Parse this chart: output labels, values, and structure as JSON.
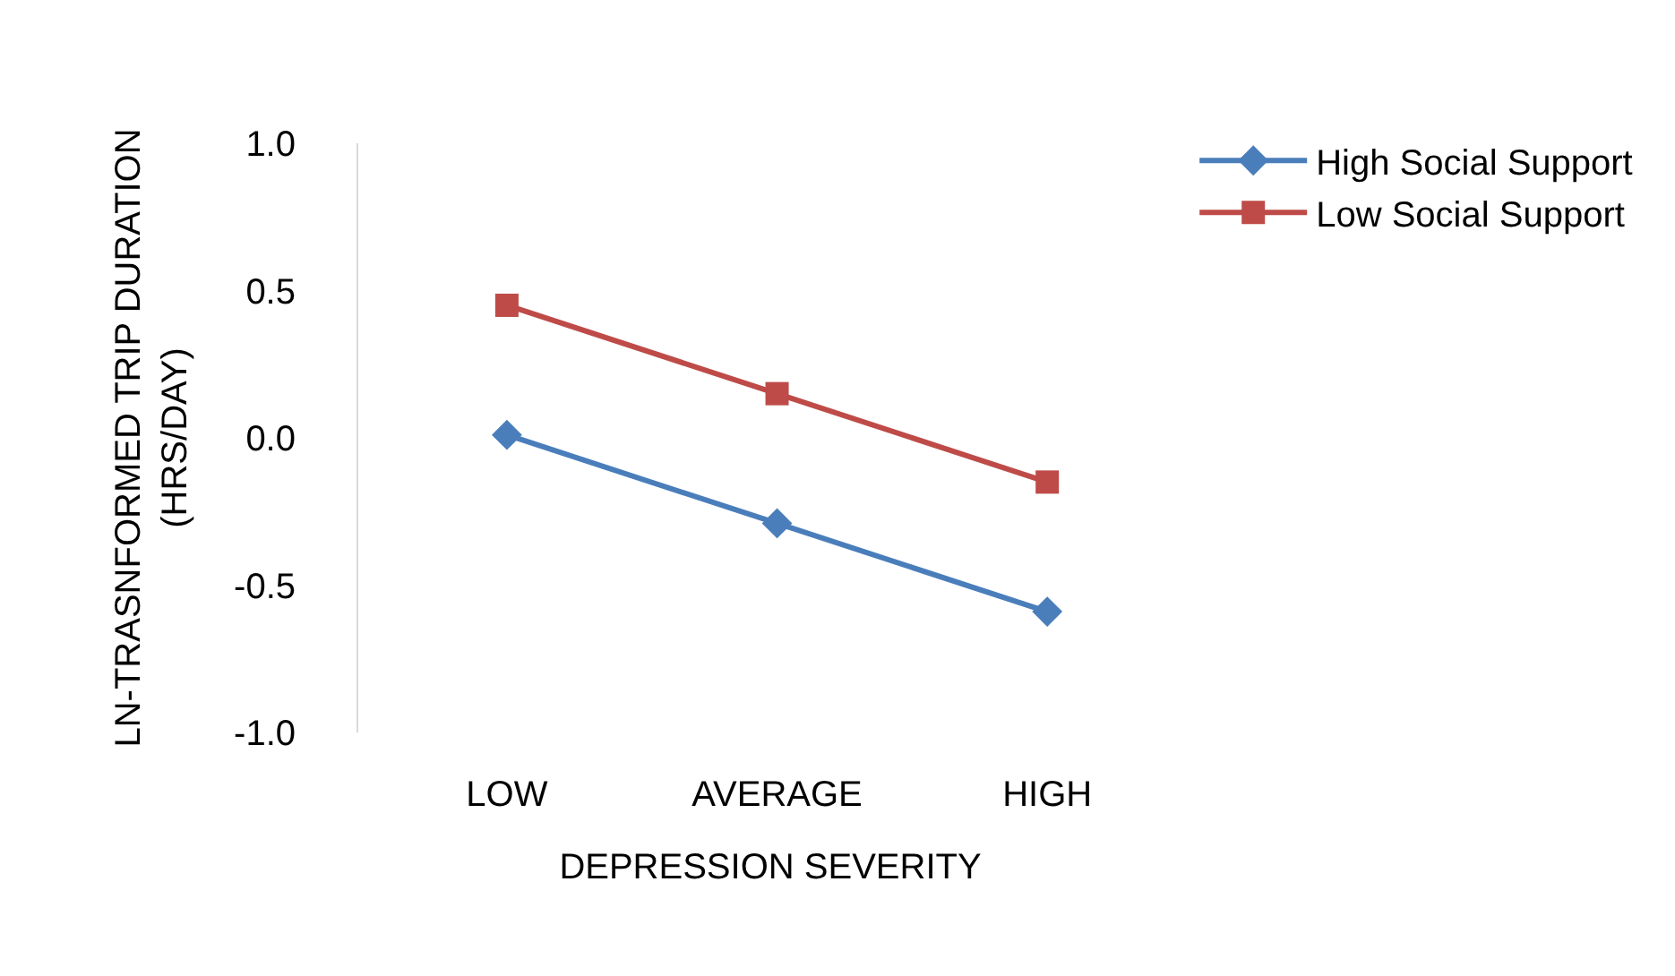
{
  "chart_data": {
    "type": "line",
    "xlabel": "DEPRESSION SEVERITY",
    "ylabel": "LN-TRASNFORMED TRIP DURATION (HRS/DAY)",
    "categories": [
      "LOW",
      "AVERAGE",
      "HIGH"
    ],
    "series": [
      {
        "name": "High Social Support",
        "color": "#4a7ebb",
        "marker": "diamond",
        "values": [
          0.01,
          -0.29,
          -0.59
        ]
      },
      {
        "name": "Low Social Support",
        "color": "#be4b48",
        "marker": "square",
        "values": [
          0.45,
          0.15,
          -0.15
        ]
      }
    ],
    "ylim": [
      -1,
      1
    ],
    "yticks": [
      {
        "value": -1,
        "label": "-1.0"
      },
      {
        "value": -0.5,
        "label": "-0.5"
      },
      {
        "value": 0,
        "label": "0.0"
      },
      {
        "value": 0.5,
        "label": "0.5"
      },
      {
        "value": 1,
        "label": "1.0"
      }
    ],
    "grid": false,
    "legend": "top right",
    "line_style": "solid"
  }
}
